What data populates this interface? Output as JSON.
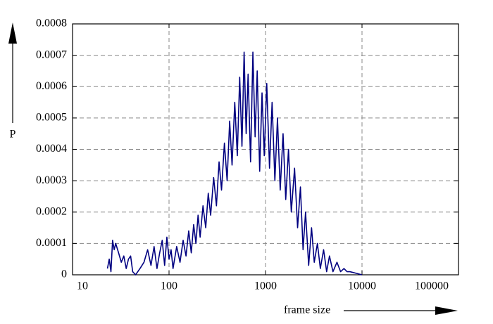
{
  "chart_data": {
    "type": "line",
    "x_label": "frame size",
    "y_label": "P",
    "log_x": true,
    "grid": true,
    "xlim": [
      10,
      100000
    ],
    "xticks": [
      10,
      100,
      1000,
      10000,
      100000
    ],
    "ylim": [
      0,
      0.0008
    ],
    "yticks": [
      0,
      0.0001,
      0.0002,
      0.0003,
      0.0004,
      0.0005,
      0.0006,
      0.0007,
      0.0008
    ],
    "series": [
      {
        "color": "#000080",
        "x": [
          23,
          24,
          25,
          26,
          27,
          28,
          30,
          32,
          34,
          36,
          38,
          40,
          42,
          45,
          50,
          55,
          60,
          65,
          70,
          75,
          80,
          85,
          90,
          95,
          100,
          105,
          110,
          120,
          130,
          140,
          150,
          160,
          170,
          180,
          190,
          200,
          210,
          225,
          240,
          255,
          270,
          290,
          310,
          330,
          350,
          375,
          400,
          425,
          450,
          480,
          510,
          540,
          570,
          600,
          630,
          660,
          700,
          740,
          780,
          820,
          870,
          920,
          970,
          1030,
          1100,
          1170,
          1250,
          1330,
          1420,
          1520,
          1620,
          1730,
          1850,
          2000,
          2150,
          2300,
          2450,
          2600,
          2800,
          3000,
          3200,
          3450,
          3700,
          4000,
          4300,
          4600,
          5000,
          5500,
          6000,
          6500,
          7000,
          7500,
          10000
        ],
        "values": [
          2e-05,
          5e-05,
          1e-05,
          0.00011,
          8e-05,
          0.0001,
          7e-05,
          4e-05,
          6e-05,
          2e-05,
          5e-05,
          6e-05,
          1e-05,
          0,
          2e-05,
          4e-05,
          8e-05,
          3e-05,
          9e-05,
          2e-05,
          7e-05,
          0.00011,
          3e-05,
          0.00012,
          5e-05,
          8e-05,
          2e-05,
          9e-05,
          4e-05,
          0.00011,
          6e-05,
          0.00014,
          7e-05,
          0.00016,
          0.0001,
          0.00019,
          0.00012,
          0.00022,
          0.00015,
          0.00026,
          0.00019,
          0.00031,
          0.00022,
          0.00036,
          0.00027,
          0.00042,
          0.0003,
          0.00049,
          0.00035,
          0.00055,
          0.00038,
          0.00063,
          0.00041,
          0.00071,
          0.00045,
          0.00064,
          0.00036,
          0.00071,
          0.00044,
          0.00065,
          0.00033,
          0.00058,
          0.00038,
          0.00061,
          0.00034,
          0.00055,
          0.0003,
          0.0005,
          0.00027,
          0.00045,
          0.00024,
          0.0004,
          0.0002,
          0.00034,
          0.00015,
          0.00028,
          8e-05,
          0.0002,
          3e-05,
          0.00015,
          4e-05,
          0.0001,
          2e-05,
          8e-05,
          1e-05,
          6e-05,
          1e-05,
          4e-05,
          1e-05,
          2e-05,
          1e-05,
          1e-05,
          0
        ]
      }
    ]
  }
}
